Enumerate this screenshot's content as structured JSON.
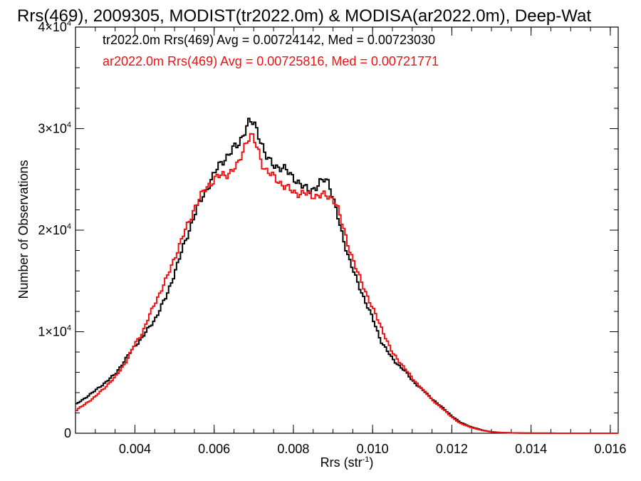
{
  "chart_data": {
    "type": "line",
    "title": "Rrs(469), 2009305, MODIST(tr2022.0m) & MODISA(ar2022.0m), Deep-Wat",
    "xlabel": "Rrs (str",
    "xlabel_sup": "-1",
    "xlabel_end": ")",
    "ylabel": "Number of Observations",
    "xlim": [
      0.0025,
      0.0162
    ],
    "ylim": [
      0,
      40000
    ],
    "x_ticks": [
      0.004,
      0.006,
      0.008,
      0.01,
      0.012,
      0.014,
      0.016
    ],
    "x_tick_labels": [
      "0.004",
      "0.006",
      "0.008",
      "0.010",
      "0.012",
      "0.014",
      "0.016"
    ],
    "y_ticks": [
      0,
      10000,
      20000,
      30000,
      40000
    ],
    "y_tick_labels": [
      {
        "main": "0",
        "sup": ""
      },
      {
        "main": "1×10",
        "sup": "4"
      },
      {
        "main": "2×10",
        "sup": "4"
      },
      {
        "main": "3×10",
        "sup": "4"
      },
      {
        "main": "4×10",
        "sup": "4"
      }
    ],
    "grid": false,
    "legend_position": "top-left",
    "series": [
      {
        "name": "tr2022.0m Rrs(469) Avg = 0.00724142, Med = 0.00723030",
        "color": "#000000",
        "x": [
          0.0025,
          0.003,
          0.0035,
          0.0038,
          0.004,
          0.0042,
          0.0045,
          0.0048,
          0.005,
          0.0053,
          0.0055,
          0.0058,
          0.006,
          0.0062,
          0.0064,
          0.0066,
          0.0067,
          0.0068,
          0.0069,
          0.007,
          0.0071,
          0.0072,
          0.0073,
          0.0074,
          0.0076,
          0.0078,
          0.008,
          0.0082,
          0.0084,
          0.0086,
          0.0087,
          0.0088,
          0.0089,
          0.009,
          0.0091,
          0.0092,
          0.0094,
          0.0096,
          0.0098,
          0.01,
          0.0102,
          0.0105,
          0.0108,
          0.011,
          0.0112,
          0.0115,
          0.0118,
          0.012,
          0.0122,
          0.0125,
          0.0128,
          0.013,
          0.0132,
          0.0135,
          0.0138,
          0.014,
          0.0145,
          0.015,
          0.0155,
          0.0162
        ],
        "y": [
          2800,
          4200,
          5800,
          7500,
          8600,
          9500,
          11200,
          13500,
          15800,
          19200,
          21500,
          24000,
          25500,
          26800,
          27600,
          28400,
          29200,
          30100,
          30600,
          30500,
          29800,
          28600,
          27300,
          26700,
          26300,
          25900,
          25300,
          24300,
          24000,
          24200,
          24700,
          25100,
          24800,
          23200,
          21600,
          20000,
          17300,
          15000,
          13200,
          11300,
          9200,
          7300,
          6200,
          5200,
          4500,
          3400,
          2400,
          1700,
          1100,
          600,
          280,
          150,
          80,
          40,
          20,
          10,
          5,
          3,
          1,
          0
        ]
      },
      {
        "name": "ar2022.0m Rrs(469) Avg = 0.00725816, Med = 0.00721771",
        "color": "#ee1111",
        "x": [
          0.0025,
          0.003,
          0.0035,
          0.0038,
          0.004,
          0.0042,
          0.0045,
          0.0048,
          0.005,
          0.0053,
          0.0055,
          0.0058,
          0.006,
          0.0062,
          0.0064,
          0.0066,
          0.0067,
          0.0068,
          0.0069,
          0.007,
          0.0071,
          0.0072,
          0.0073,
          0.0074,
          0.0076,
          0.0078,
          0.008,
          0.0082,
          0.0084,
          0.0086,
          0.0087,
          0.0088,
          0.0089,
          0.009,
          0.0091,
          0.0092,
          0.0094,
          0.0096,
          0.0098,
          0.01,
          0.0102,
          0.0105,
          0.0108,
          0.011,
          0.0112,
          0.0115,
          0.0118,
          0.012,
          0.0122,
          0.0125,
          0.0128,
          0.013,
          0.0132,
          0.0135,
          0.0138,
          0.014,
          0.0145,
          0.015,
          0.0155,
          0.0162
        ],
        "y": [
          2200,
          3600,
          5500,
          7200,
          8800,
          10000,
          12800,
          15200,
          17300,
          20200,
          22200,
          24200,
          25000,
          25400,
          25700,
          26300,
          27600,
          28700,
          29300,
          28900,
          28000,
          26800,
          25900,
          25500,
          25000,
          24200,
          23800,
          23600,
          23500,
          23400,
          23400,
          23400,
          23300,
          23200,
          22400,
          21000,
          18400,
          16000,
          14200,
          12300,
          10600,
          7900,
          6500,
          5400,
          4600,
          3300,
          2300,
          1600,
          1000,
          550,
          260,
          140,
          70,
          35,
          15,
          8,
          4,
          2,
          1,
          0
        ]
      }
    ]
  }
}
